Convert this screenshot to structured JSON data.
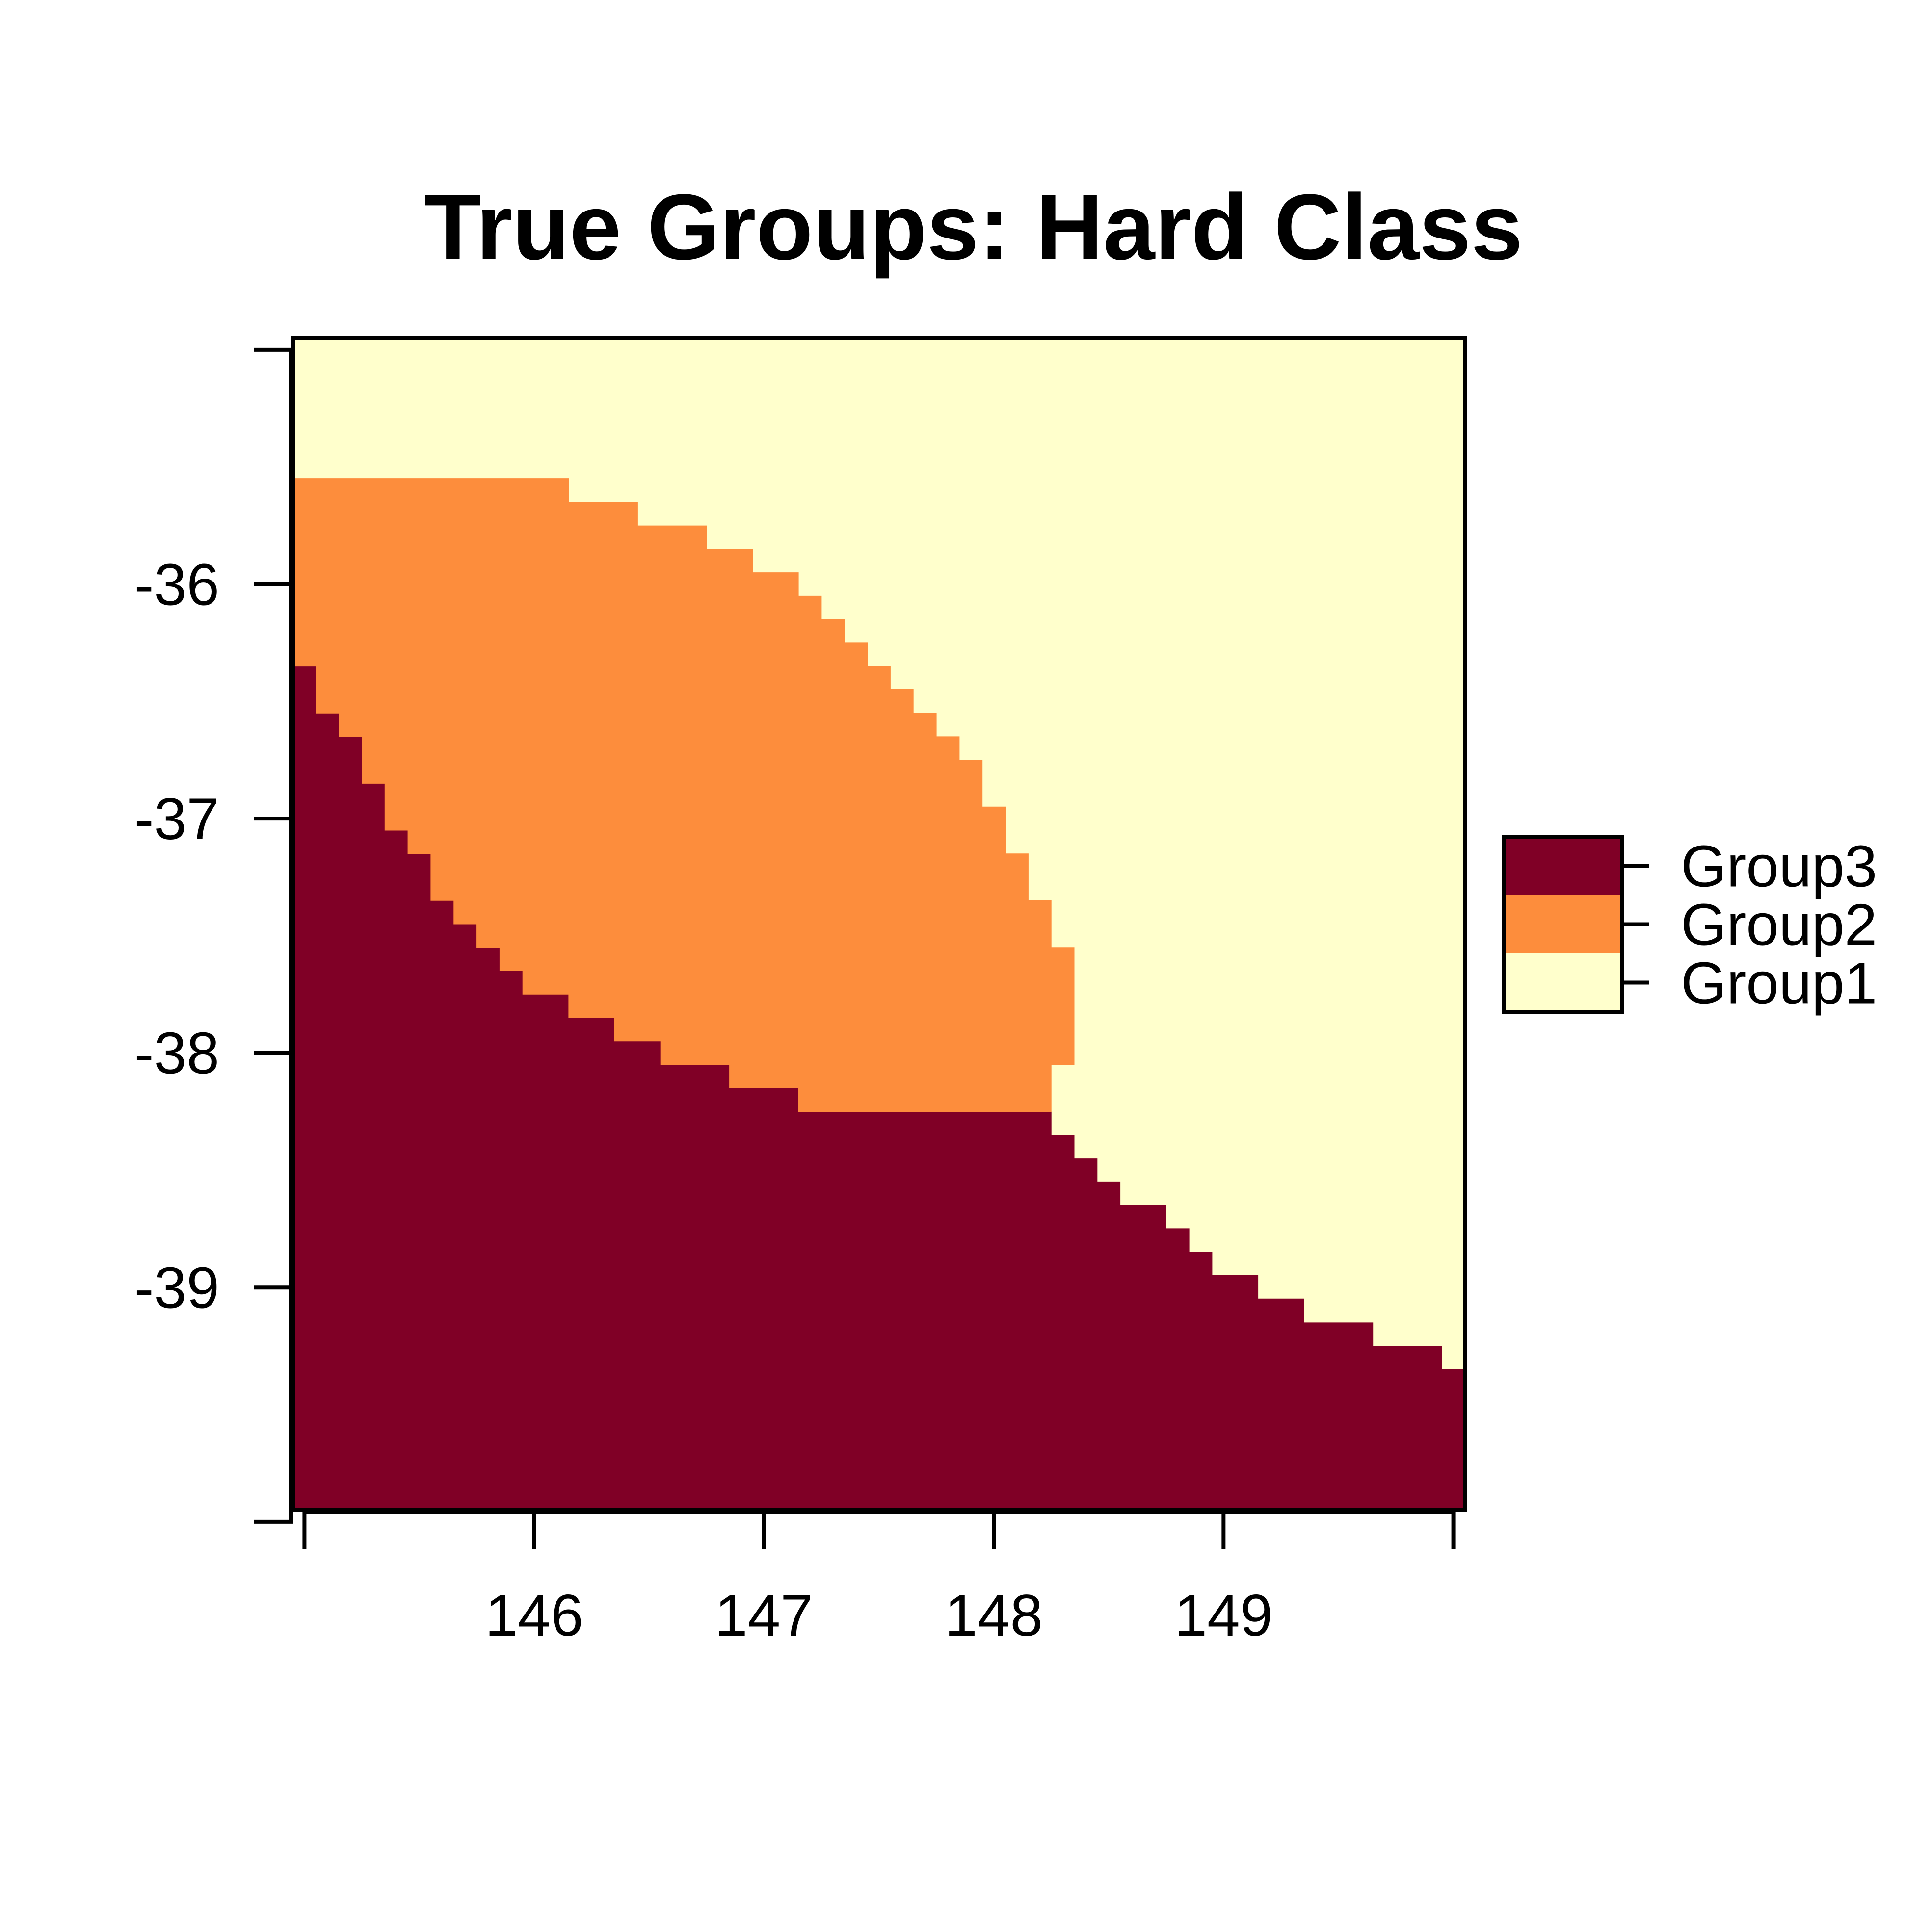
{
  "chart_data": {
    "type": "heatmap",
    "title": "True Groups: Hard Class",
    "xlabel": "",
    "ylabel": "",
    "xlim": [
      144.95,
      150.05
    ],
    "ylim": [
      -39.95,
      -34.95
    ],
    "x_ticks": [
      145,
      146,
      147,
      148,
      149,
      150
    ],
    "x_tick_labels": [
      "",
      "146",
      "147",
      "148",
      "149",
      ""
    ],
    "y_ticks": [
      -35,
      -36,
      -37,
      -38,
      -39,
      -40
    ],
    "y_tick_labels": [
      "",
      "-36",
      "-37",
      "-38",
      "-39",
      ""
    ],
    "grid": false,
    "legend": {
      "placement": "right",
      "entries": [
        {
          "label": "Group3",
          "color": "#800026"
        },
        {
          "label": "Group2",
          "color": "#fd8d3c"
        },
        {
          "label": "Group1",
          "color": "#ffffcc"
        }
      ]
    },
    "classes": [
      "Group1",
      "Group2",
      "Group3"
    ],
    "class_colors": {
      "Group1": "#ffffcc",
      "Group2": "#fd8d3c",
      "Group3": "#800026"
    },
    "group2_region": {
      "description_of_boundary": "x range per row band of Group2 (upper limit of Group3 / lower limit of Group1)",
      "top_y": -35.55,
      "bottom_y": -38.25,
      "upper_edge": [
        [
          144.95,
          -35.55
        ],
        [
          146.15,
          -35.55
        ],
        [
          146.15,
          -35.65
        ],
        [
          146.45,
          -35.65
        ],
        [
          146.45,
          -35.75
        ],
        [
          146.75,
          -35.75
        ],
        [
          146.75,
          -35.85
        ],
        [
          146.95,
          -35.85
        ],
        [
          146.95,
          -35.95
        ],
        [
          147.15,
          -35.95
        ],
        [
          147.15,
          -36.05
        ],
        [
          147.25,
          -36.05
        ],
        [
          147.25,
          -36.15
        ],
        [
          147.35,
          -36.15
        ],
        [
          147.35,
          -36.25
        ],
        [
          147.45,
          -36.25
        ],
        [
          147.45,
          -36.35
        ],
        [
          147.55,
          -36.35
        ],
        [
          147.55,
          -36.45
        ],
        [
          147.65,
          -36.45
        ],
        [
          147.65,
          -36.55
        ],
        [
          147.75,
          -36.55
        ],
        [
          147.75,
          -36.65
        ],
        [
          147.85,
          -36.65
        ],
        [
          147.85,
          -36.75
        ],
        [
          147.95,
          -36.75
        ],
        [
          147.95,
          -36.95
        ],
        [
          148.05,
          -36.95
        ],
        [
          148.05,
          -37.15
        ],
        [
          148.15,
          -37.15
        ],
        [
          148.15,
          -37.35
        ],
        [
          148.25,
          -37.35
        ],
        [
          148.25,
          -37.55
        ],
        [
          148.35,
          -37.55
        ],
        [
          148.35,
          -38.05
        ],
        [
          148.25,
          -38.05
        ],
        [
          148.25,
          -38.25
        ]
      ],
      "lower_edge": [
        [
          148.25,
          -38.25
        ],
        [
          147.15,
          -38.25
        ],
        [
          147.15,
          -38.15
        ],
        [
          146.85,
          -38.15
        ],
        [
          146.85,
          -38.05
        ],
        [
          146.55,
          -38.05
        ],
        [
          146.55,
          -37.95
        ],
        [
          146.35,
          -37.95
        ],
        [
          146.35,
          -37.85
        ],
        [
          146.15,
          -37.85
        ],
        [
          146.15,
          -37.75
        ],
        [
          145.95,
          -37.75
        ],
        [
          145.95,
          -37.65
        ],
        [
          145.85,
          -37.65
        ],
        [
          145.85,
          -37.55
        ],
        [
          145.75,
          -37.55
        ],
        [
          145.75,
          -37.45
        ],
        [
          145.65,
          -37.45
        ],
        [
          145.65,
          -37.35
        ],
        [
          145.55,
          -37.35
        ],
        [
          145.55,
          -37.15
        ],
        [
          145.45,
          -37.15
        ],
        [
          145.45,
          -37.05
        ],
        [
          145.35,
          -37.05
        ],
        [
          145.35,
          -36.85
        ],
        [
          145.25,
          -36.85
        ],
        [
          145.25,
          -36.65
        ],
        [
          145.15,
          -36.65
        ],
        [
          145.15,
          -36.55
        ],
        [
          145.05,
          -36.55
        ],
        [
          145.05,
          -36.35
        ],
        [
          144.95,
          -36.35
        ]
      ]
    },
    "group3_region": {
      "upper_edge": [
        [
          144.95,
          -36.35
        ],
        [
          145.05,
          -36.35
        ],
        [
          145.05,
          -36.55
        ],
        [
          145.15,
          -36.55
        ],
        [
          145.15,
          -36.65
        ],
        [
          145.25,
          -36.65
        ],
        [
          145.25,
          -36.85
        ],
        [
          145.35,
          -36.85
        ],
        [
          145.35,
          -37.05
        ],
        [
          145.45,
          -37.05
        ],
        [
          145.45,
          -37.15
        ],
        [
          145.55,
          -37.15
        ],
        [
          145.55,
          -37.35
        ],
        [
          145.65,
          -37.35
        ],
        [
          145.65,
          -37.45
        ],
        [
          145.75,
          -37.45
        ],
        [
          145.75,
          -37.55
        ],
        [
          145.85,
          -37.55
        ],
        [
          145.85,
          -37.65
        ],
        [
          145.95,
          -37.65
        ],
        [
          145.95,
          -37.75
        ],
        [
          146.15,
          -37.75
        ],
        [
          146.15,
          -37.85
        ],
        [
          146.35,
          -37.85
        ],
        [
          146.35,
          -37.95
        ],
        [
          146.55,
          -37.95
        ],
        [
          146.55,
          -38.05
        ],
        [
          146.85,
          -38.05
        ],
        [
          146.85,
          -38.15
        ],
        [
          147.15,
          -38.15
        ],
        [
          147.15,
          -38.25
        ],
        [
          148.25,
          -38.25
        ],
        [
          148.25,
          -38.35
        ],
        [
          148.35,
          -38.35
        ],
        [
          148.35,
          -38.45
        ],
        [
          148.45,
          -38.45
        ],
        [
          148.45,
          -38.55
        ],
        [
          148.55,
          -38.55
        ],
        [
          148.55,
          -38.65
        ],
        [
          148.75,
          -38.65
        ],
        [
          148.75,
          -38.75
        ],
        [
          148.85,
          -38.75
        ],
        [
          148.85,
          -38.85
        ],
        [
          148.95,
          -38.85
        ],
        [
          148.95,
          -38.95
        ],
        [
          149.15,
          -38.95
        ],
        [
          149.15,
          -39.05
        ],
        [
          149.35,
          -39.05
        ],
        [
          149.35,
          -39.15
        ],
        [
          149.65,
          -39.15
        ],
        [
          149.65,
          -39.25
        ],
        [
          149.95,
          -39.25
        ],
        [
          149.95,
          -39.35
        ],
        [
          150.05,
          -39.35
        ]
      ]
    }
  }
}
